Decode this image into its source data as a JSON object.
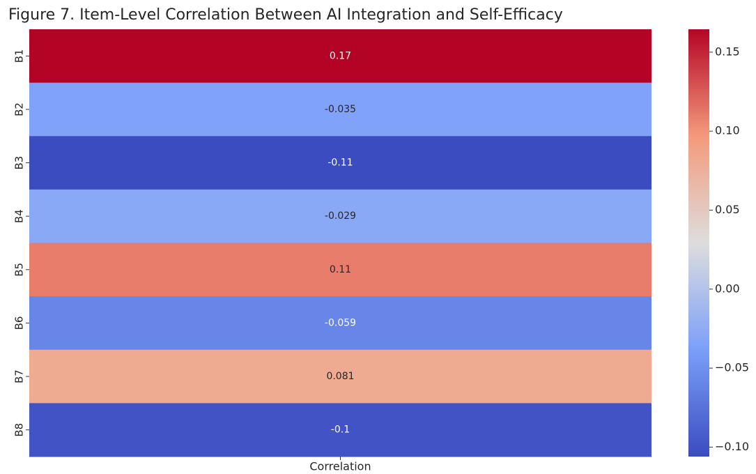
{
  "chart_data": {
    "type": "heatmap",
    "title": "Figure 7. Item-Level Correlation Between AI Integration and Self-Efficacy",
    "rows": [
      "B1",
      "B2",
      "B3",
      "B4",
      "B5",
      "B6",
      "B7",
      "B8"
    ],
    "columns": [
      "Correlation"
    ],
    "values": [
      [
        0.17
      ],
      [
        -0.035
      ],
      [
        -0.11
      ],
      [
        -0.029
      ],
      [
        0.11
      ],
      [
        -0.059
      ],
      [
        0.081
      ],
      [
        -0.1
      ]
    ],
    "clim": [
      -0.106,
      0.1645
    ],
    "cticks": [
      0.15,
      {
        "value": 0.1,
        "label": "0.10"
      },
      0.05,
      {
        "value": 0,
        "label": "0.00"
      },
      {
        "value": -0.05,
        "label": "−0.05"
      },
      {
        "value": -0.1,
        "label": "−0.10"
      }
    ],
    "colormap": [
      "#3b4cc0",
      "#7b9ff9",
      "#dddddd",
      "#f49a7b",
      "#b40426"
    ]
  }
}
